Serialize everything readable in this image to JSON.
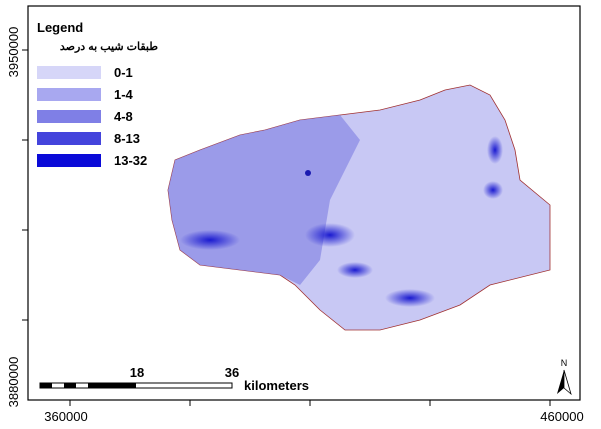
{
  "legend": {
    "title": "Legend",
    "subtitle": "طبقات شیب به درصد",
    "classes": [
      "0-1",
      "1-4",
      "4-8",
      "8-13",
      "13-32"
    ]
  },
  "coordinates": {
    "y_top": "3950000",
    "y_bottom": "3880000",
    "x_left": "360000",
    "x_right": "460000"
  },
  "scale_bar": {
    "labels": [
      "18",
      "36"
    ],
    "unit": "kilometers"
  },
  "north_arrow": "N"
}
